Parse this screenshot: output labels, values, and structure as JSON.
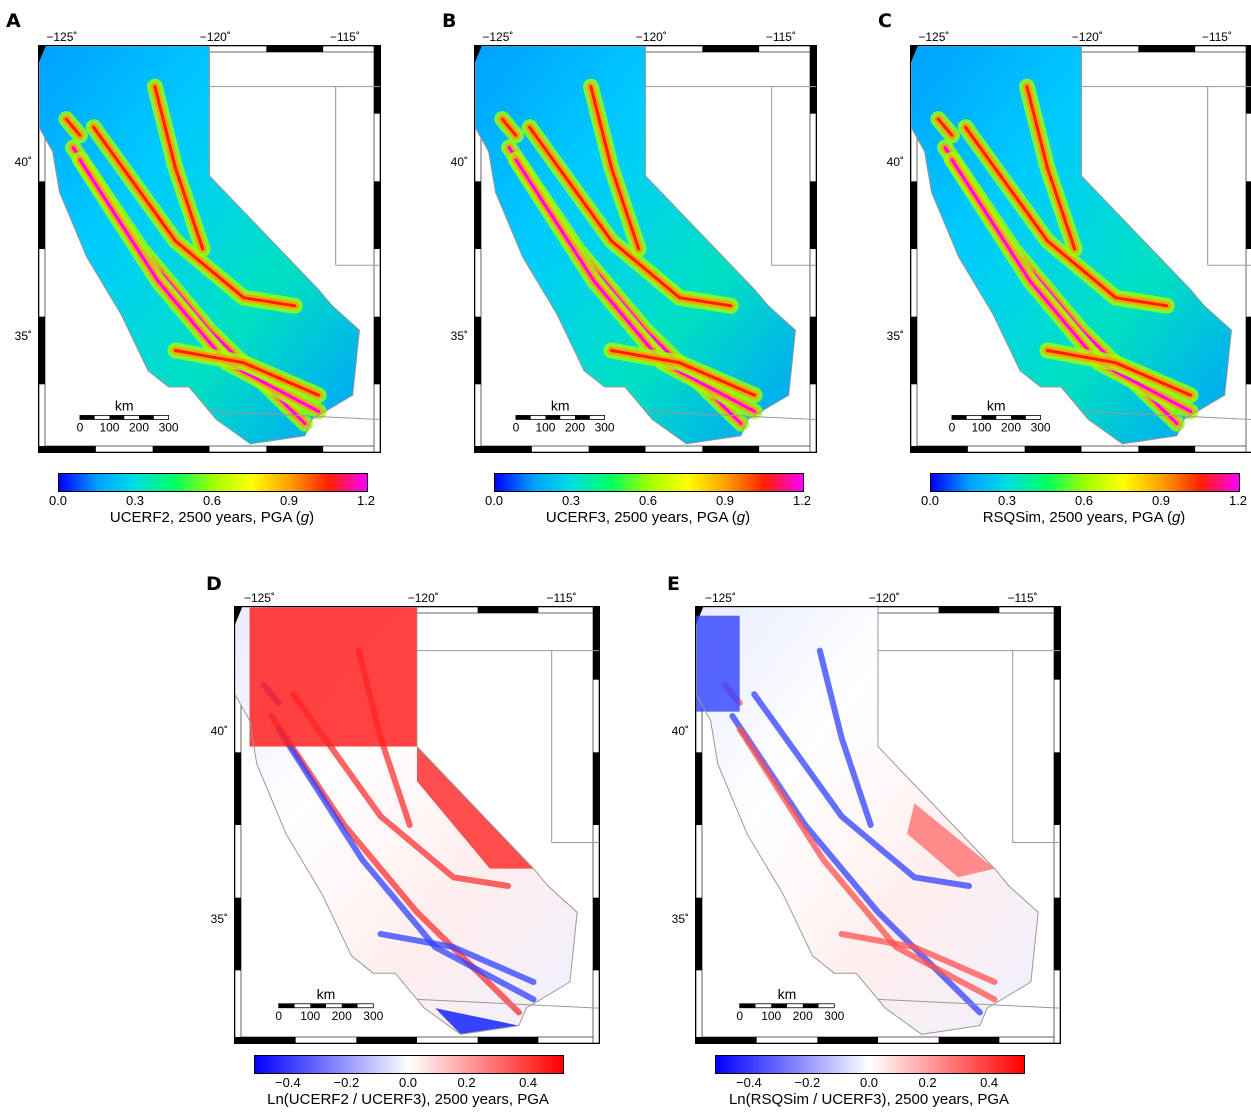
{
  "axes": {
    "lon_labels": [
      "−125˚",
      "−120˚",
      "−115˚"
    ],
    "lat_labels": [
      "40˚",
      "35˚"
    ]
  },
  "scalebar": {
    "unit": "km",
    "ticks": [
      "0",
      "100",
      "200",
      "300"
    ]
  },
  "colors": {
    "pga_scale": [
      "#0000ff",
      "#00a0ff",
      "#00e0e0",
      "#00ff60",
      "#a0ff00",
      "#ffff00",
      "#ffa000",
      "#ff2000",
      "#ff00ff"
    ],
    "ratio_scale": [
      "#0000ff",
      "#ffffff",
      "#ff0000"
    ],
    "outline": "#999999"
  },
  "panels": [
    {
      "id": "A",
      "label": "A",
      "kind": "pga",
      "colorbar_ticks": [
        "0.0",
        "0.3",
        "0.6",
        "0.9",
        "1.2"
      ],
      "colorbar_title": "UCERF2, 2500 years, PGA (",
      "title_unit": "g",
      "title_close": ")"
    },
    {
      "id": "B",
      "label": "B",
      "kind": "pga",
      "colorbar_ticks": [
        "0.0",
        "0.3",
        "0.6",
        "0.9",
        "1.2"
      ],
      "colorbar_title": "UCERF3, 2500 years, PGA (",
      "title_unit": "g",
      "title_close": ")"
    },
    {
      "id": "C",
      "label": "C",
      "kind": "pga",
      "colorbar_ticks": [
        "0.0",
        "0.3",
        "0.6",
        "0.9",
        "1.2"
      ],
      "colorbar_title": "RSQSim, 2500 years, PGA (",
      "title_unit": "g",
      "title_close": ")"
    },
    {
      "id": "D",
      "label": "D",
      "kind": "ratio",
      "colorbar_ticks": [
        "−0.4",
        "−0.2",
        "0.0",
        "0.2",
        "0.4"
      ],
      "colorbar_title": "Ln(UCERF2 / UCERF3), 2500 years, PGA",
      "title_unit": "",
      "title_close": ""
    },
    {
      "id": "E",
      "label": "E",
      "kind": "ratio",
      "colorbar_ticks": [
        "−0.4",
        "−0.2",
        "0.0",
        "0.2",
        "0.4"
      ],
      "colorbar_title": "Ln(RSQSim / UCERF3), 2500 years, PGA",
      "title_unit": "",
      "title_close": ""
    }
  ]
}
